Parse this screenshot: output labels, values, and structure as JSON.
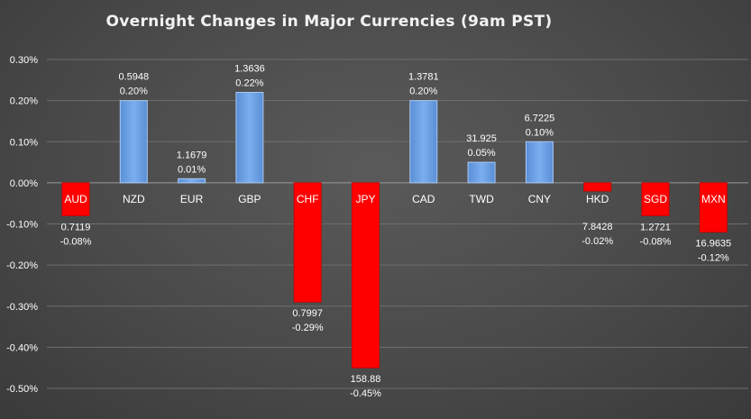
{
  "colors": {
    "positive": "#6a9fe6",
    "positive_edge": "#a9c8f2",
    "negative": "#ff0000",
    "gridline": "#6e6e6e",
    "zero_line": "#9a9a9a",
    "text": "#ffffff"
  },
  "chart_data": {
    "type": "bar",
    "title": "Overnight Changes in Major Currencies (9am PST)",
    "xlabel": "",
    "ylabel": "",
    "ylim": [
      -0.5,
      0.3
    ],
    "y_ticks": [
      0.3,
      0.2,
      0.1,
      0.0,
      -0.1,
      -0.2,
      -0.3,
      -0.4,
      -0.5
    ],
    "y_tick_labels": [
      "0.30%",
      "0.20%",
      "0.10%",
      "0.00%",
      "-0.10%",
      "-0.20%",
      "-0.30%",
      "-0.40%",
      "-0.50%"
    ],
    "grid": true,
    "legend": "none",
    "categories": [
      "AUD",
      "NZD",
      "EUR",
      "GBP",
      "CHF",
      "JPY",
      "CAD",
      "TWD",
      "CNY",
      "HKD",
      "SGD",
      "MXN"
    ],
    "values": [
      -0.08,
      0.2,
      0.01,
      0.22,
      -0.29,
      -0.45,
      0.2,
      0.05,
      0.1,
      -0.02,
      -0.08,
      -0.12
    ],
    "rates": [
      "0.7119",
      "0.5948",
      "1.1679",
      "1.3636",
      "0.7997",
      "158.88",
      "1.3781",
      "31.925",
      "6.7225",
      "7.8428",
      "1.2721",
      "16.9635"
    ],
    "percent_labels": [
      "-0.08%",
      "0.20%",
      "0.01%",
      "0.22%",
      "-0.29%",
      "-0.45%",
      "0.20%",
      "0.05%",
      "0.10%",
      "-0.02%",
      "-0.08%",
      "-0.12%"
    ]
  }
}
